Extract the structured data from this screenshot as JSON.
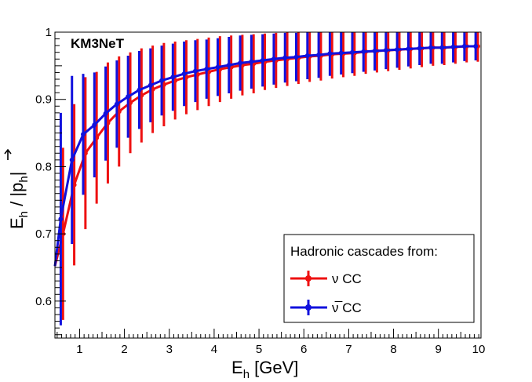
{
  "chart_data": {
    "type": "line",
    "title": "",
    "experiment_label": "KM3NeT",
    "xlabel": {
      "main": "E",
      "sub": "h",
      "rest": " [GeV]"
    },
    "ylabel": {
      "main": "E",
      "sub1": "h",
      "slash": " / |",
      "p": "p",
      "sub2": "h",
      "end": "|"
    },
    "xlim": [
      0.45,
      9.95
    ],
    "ylim": [
      0.545,
      1.0
    ],
    "x_ticks": [
      1,
      2,
      3,
      4,
      5,
      6,
      7,
      8,
      9,
      10
    ],
    "x_tick_labels": [
      "1",
      "2",
      "3",
      "4",
      "5",
      "6",
      "7",
      "8",
      "9",
      "10"
    ],
    "y_ticks": [
      0.6,
      0.7,
      0.8,
      0.9,
      1.0
    ],
    "y_tick_labels": [
      "0.6",
      "0.7",
      "0.8",
      "0.9",
      "1"
    ],
    "grid": false,
    "legend": {
      "position": "bottom-right",
      "header": "Hadronic cascades from:",
      "entries": [
        "ν CC",
        "ν̅ CC"
      ]
    },
    "series": [
      {
        "name": "ν CC",
        "color": "#ee1111",
        "points": [
          {
            "x": 0.45,
            "y": 0.652,
            "err": 0.0
          },
          {
            "x": 0.63,
            "y": 0.7,
            "err": 0.128
          },
          {
            "x": 0.88,
            "y": 0.773,
            "err": 0.12
          },
          {
            "x": 1.13,
            "y": 0.82,
            "err": 0.113
          },
          {
            "x": 1.38,
            "y": 0.843,
            "err": 0.098
          },
          {
            "x": 1.63,
            "y": 0.865,
            "err": 0.09
          },
          {
            "x": 1.88,
            "y": 0.882,
            "err": 0.082
          },
          {
            "x": 2.13,
            "y": 0.895,
            "err": 0.075
          },
          {
            "x": 2.38,
            "y": 0.906,
            "err": 0.07
          },
          {
            "x": 2.63,
            "y": 0.915,
            "err": 0.065
          },
          {
            "x": 2.88,
            "y": 0.922,
            "err": 0.062
          },
          {
            "x": 3.13,
            "y": 0.928,
            "err": 0.058
          },
          {
            "x": 3.38,
            "y": 0.933,
            "err": 0.055
          },
          {
            "x": 3.63,
            "y": 0.937,
            "err": 0.053
          },
          {
            "x": 3.88,
            "y": 0.941,
            "err": 0.051
          },
          {
            "x": 4.13,
            "y": 0.945,
            "err": 0.049
          },
          {
            "x": 4.38,
            "y": 0.948,
            "err": 0.047
          },
          {
            "x": 4.63,
            "y": 0.951,
            "err": 0.045
          },
          {
            "x": 4.88,
            "y": 0.953,
            "err": 0.044
          },
          {
            "x": 5.13,
            "y": 0.956,
            "err": 0.042
          },
          {
            "x": 5.38,
            "y": 0.958,
            "err": 0.041
          },
          {
            "x": 5.63,
            "y": 0.96,
            "err": 0.04
          },
          {
            "x": 5.88,
            "y": 0.962,
            "err": 0.039
          },
          {
            "x": 6.13,
            "y": 0.964,
            "err": 0.038
          },
          {
            "x": 6.38,
            "y": 0.965,
            "err": 0.037
          },
          {
            "x": 6.63,
            "y": 0.967,
            "err": 0.036
          },
          {
            "x": 6.88,
            "y": 0.968,
            "err": 0.035
          },
          {
            "x": 7.13,
            "y": 0.969,
            "err": 0.034
          },
          {
            "x": 7.38,
            "y": 0.971,
            "err": 0.033
          },
          {
            "x": 7.63,
            "y": 0.972,
            "err": 0.032
          },
          {
            "x": 7.88,
            "y": 0.973,
            "err": 0.031
          },
          {
            "x": 8.13,
            "y": 0.974,
            "err": 0.03
          },
          {
            "x": 8.38,
            "y": 0.975,
            "err": 0.029
          },
          {
            "x": 8.63,
            "y": 0.976,
            "err": 0.028
          },
          {
            "x": 8.88,
            "y": 0.977,
            "err": 0.027
          },
          {
            "x": 9.13,
            "y": 0.977,
            "err": 0.026
          },
          {
            "x": 9.38,
            "y": 0.978,
            "err": 0.025
          },
          {
            "x": 9.63,
            "y": 0.979,
            "err": 0.024
          },
          {
            "x": 9.88,
            "y": 0.979,
            "err": 0.023
          }
        ]
      },
      {
        "name": "ν̅ CC",
        "color": "#1111dd",
        "points": [
          {
            "x": 0.45,
            "y": 0.652,
            "err": 0.0
          },
          {
            "x": 0.58,
            "y": 0.722,
            "err": 0.158
          },
          {
            "x": 0.83,
            "y": 0.81,
            "err": 0.125
          },
          {
            "x": 1.08,
            "y": 0.848,
            "err": 0.09
          },
          {
            "x": 1.33,
            "y": 0.862,
            "err": 0.078
          },
          {
            "x": 1.58,
            "y": 0.879,
            "err": 0.07
          },
          {
            "x": 1.83,
            "y": 0.893,
            "err": 0.065
          },
          {
            "x": 2.08,
            "y": 0.904,
            "err": 0.061
          },
          {
            "x": 2.33,
            "y": 0.914,
            "err": 0.058
          },
          {
            "x": 2.58,
            "y": 0.921,
            "err": 0.055
          },
          {
            "x": 2.83,
            "y": 0.928,
            "err": 0.052
          },
          {
            "x": 3.08,
            "y": 0.933,
            "err": 0.05
          },
          {
            "x": 3.33,
            "y": 0.938,
            "err": 0.048
          },
          {
            "x": 3.58,
            "y": 0.942,
            "err": 0.046
          },
          {
            "x": 3.83,
            "y": 0.945,
            "err": 0.044
          },
          {
            "x": 4.08,
            "y": 0.948,
            "err": 0.043
          },
          {
            "x": 4.33,
            "y": 0.951,
            "err": 0.042
          },
          {
            "x": 4.58,
            "y": 0.954,
            "err": 0.041
          },
          {
            "x": 4.83,
            "y": 0.956,
            "err": 0.04
          },
          {
            "x": 5.08,
            "y": 0.958,
            "err": 0.039
          },
          {
            "x": 5.33,
            "y": 0.96,
            "err": 0.038
          },
          {
            "x": 5.58,
            "y": 0.962,
            "err": 0.037
          },
          {
            "x": 5.83,
            "y": 0.963,
            "err": 0.036
          },
          {
            "x": 6.08,
            "y": 0.965,
            "err": 0.035
          },
          {
            "x": 6.33,
            "y": 0.966,
            "err": 0.034
          },
          {
            "x": 6.58,
            "y": 0.968,
            "err": 0.033
          },
          {
            "x": 6.83,
            "y": 0.969,
            "err": 0.032
          },
          {
            "x": 7.08,
            "y": 0.97,
            "err": 0.031
          },
          {
            "x": 7.33,
            "y": 0.971,
            "err": 0.03
          },
          {
            "x": 7.58,
            "y": 0.972,
            "err": 0.029
          },
          {
            "x": 7.83,
            "y": 0.973,
            "err": 0.028
          },
          {
            "x": 8.08,
            "y": 0.974,
            "err": 0.027
          },
          {
            "x": 8.33,
            "y": 0.975,
            "err": 0.026
          },
          {
            "x": 8.58,
            "y": 0.976,
            "err": 0.025
          },
          {
            "x": 8.83,
            "y": 0.977,
            "err": 0.024
          },
          {
            "x": 9.08,
            "y": 0.977,
            "err": 0.024
          },
          {
            "x": 9.33,
            "y": 0.978,
            "err": 0.023
          },
          {
            "x": 9.58,
            "y": 0.979,
            "err": 0.022
          },
          {
            "x": 9.83,
            "y": 0.979,
            "err": 0.021
          }
        ]
      }
    ]
  }
}
